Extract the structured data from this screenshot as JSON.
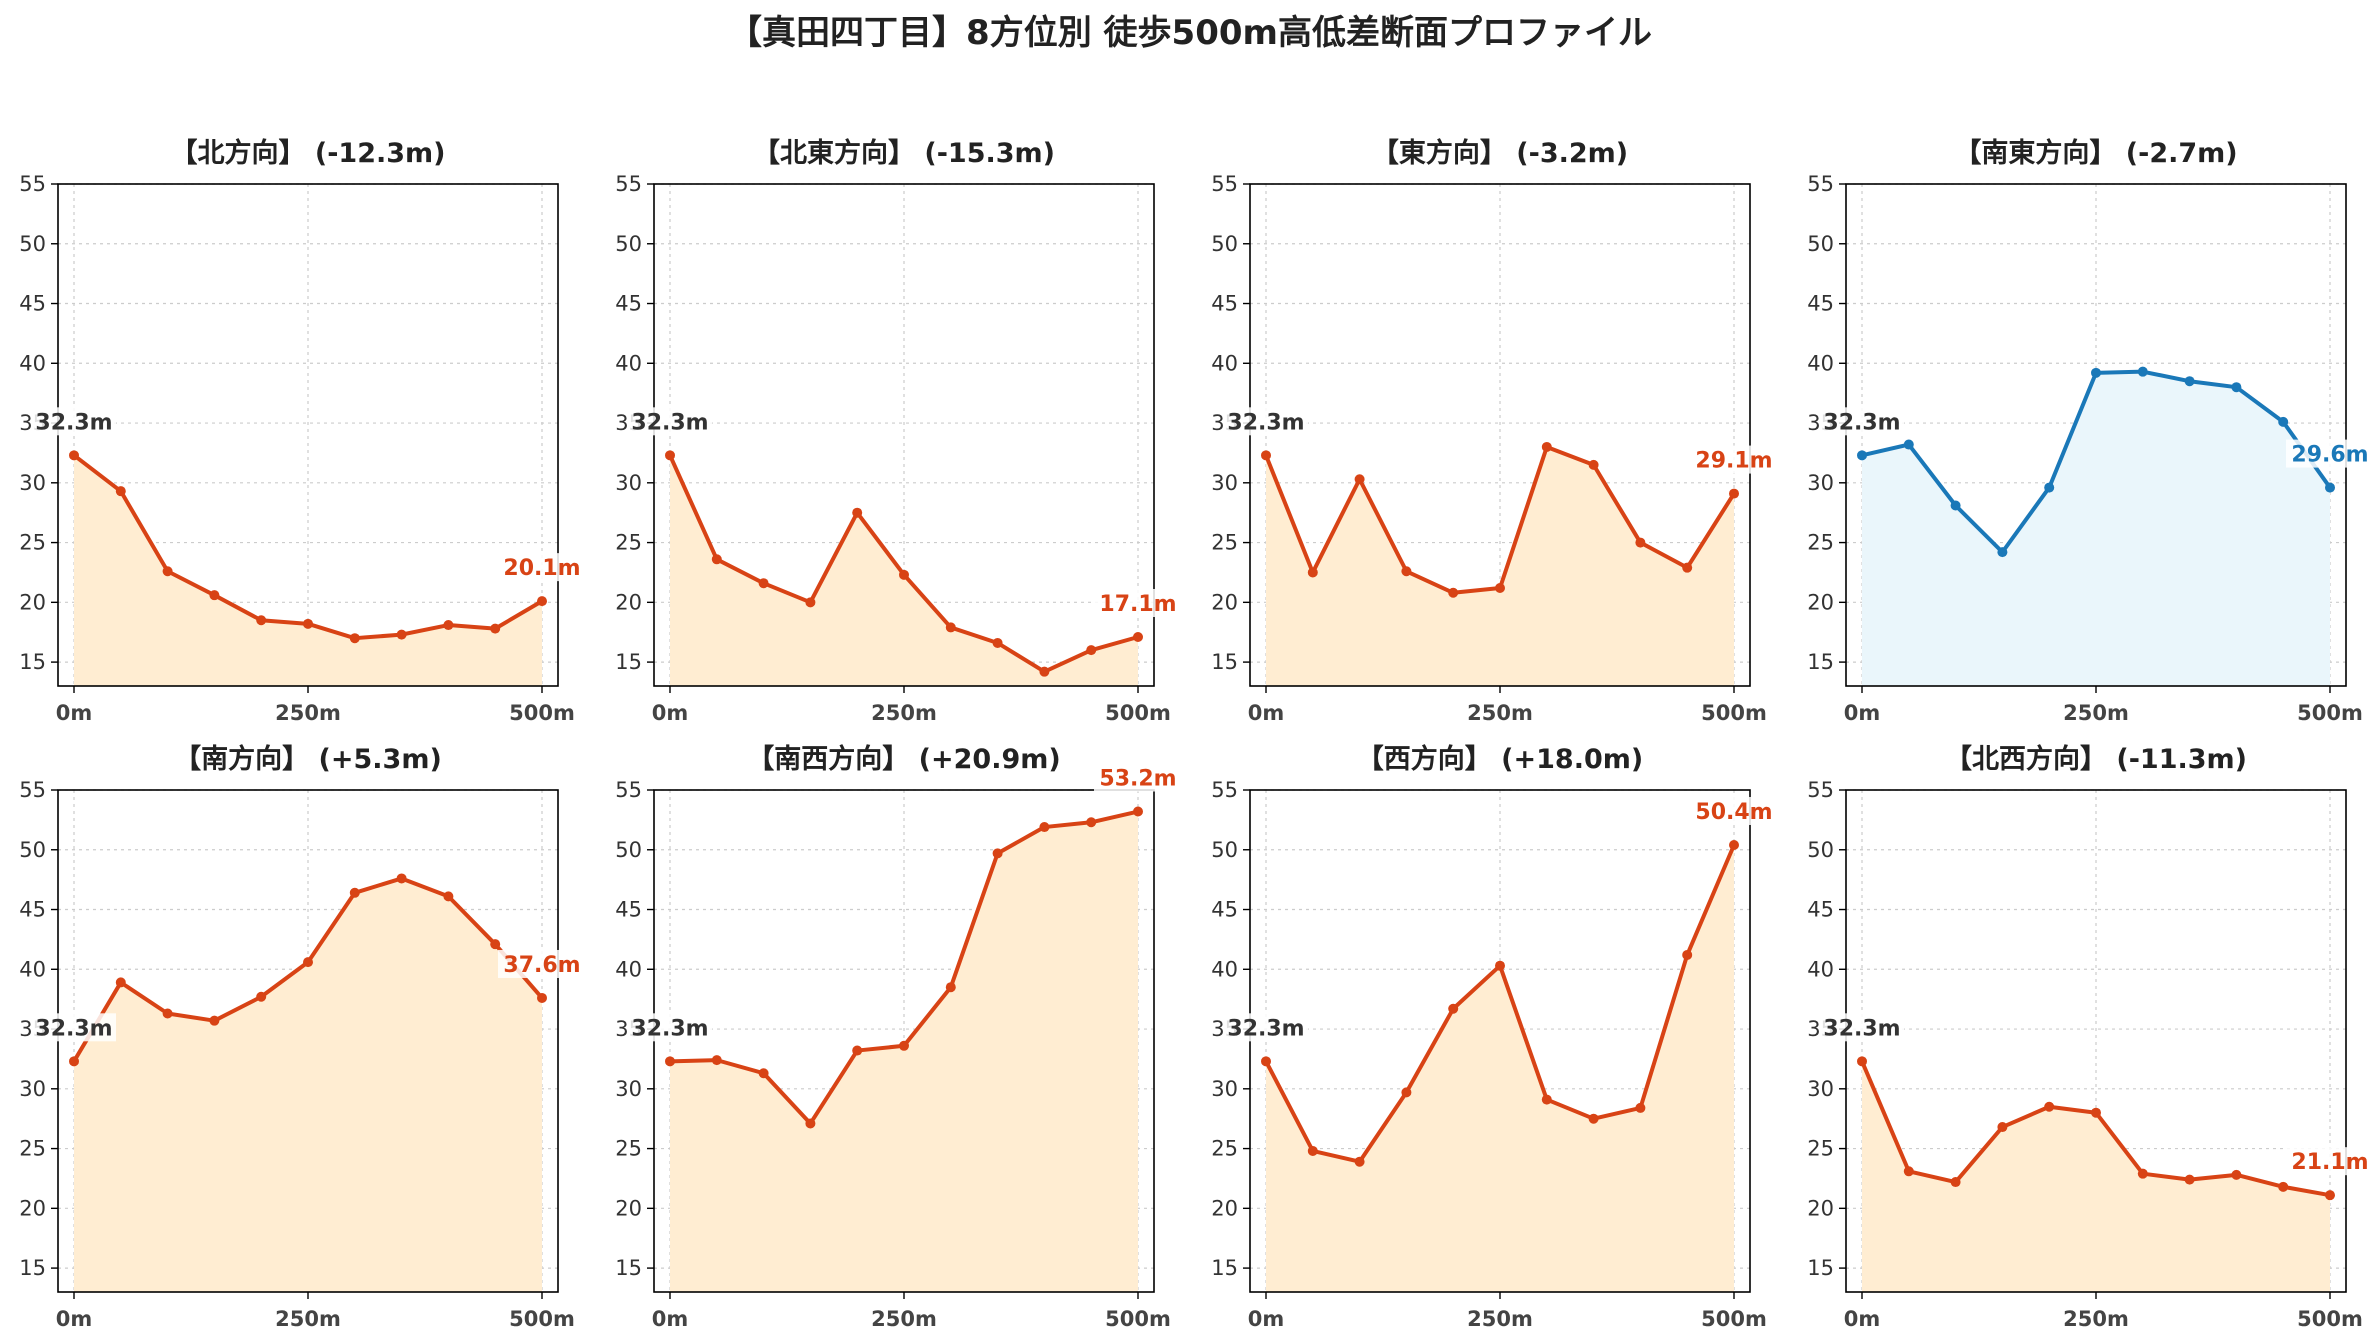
{
  "title": "【真田四丁目】8方位別 徒歩500m高低差断面プロファイル",
  "colors": {
    "down_line": "#c62828",
    "down_line_alt": "#d84315",
    "down_fill": "#ffedd2",
    "up_line": "#1a78b8",
    "up_fill": "#eaf6fb",
    "start_label": "#333333"
  },
  "chart_data": [
    {
      "type": "area",
      "title": "【北方向】 (-12.3m)",
      "x": [
        0,
        50,
        100,
        150,
        200,
        250,
        300,
        350,
        400,
        450,
        500
      ],
      "values": [
        32.3,
        29.3,
        22.6,
        20.6,
        18.5,
        18.2,
        17.0,
        17.3,
        18.1,
        17.8,
        20.1
      ],
      "ylim": [
        13,
        55
      ],
      "yticks": [
        "15",
        "20",
        "25",
        "30",
        "35",
        "40",
        "45",
        "50",
        "55"
      ],
      "xticks": [
        "0m",
        "250m",
        "500m"
      ],
      "start_label": "32.3m",
      "end_label": "20.1m",
      "style": "down"
    },
    {
      "type": "area",
      "title": "【北東方向】 (-15.3m)",
      "x": [
        0,
        50,
        100,
        150,
        200,
        250,
        300,
        350,
        400,
        450,
        500
      ],
      "values": [
        32.3,
        23.6,
        21.6,
        20.0,
        27.5,
        22.3,
        17.9,
        16.6,
        14.2,
        16.0,
        17.1
      ],
      "ylim": [
        13,
        55
      ],
      "yticks": [
        "15",
        "20",
        "25",
        "30",
        "35",
        "40",
        "45",
        "50",
        "55"
      ],
      "xticks": [
        "0m",
        "250m",
        "500m"
      ],
      "start_label": "32.3m",
      "end_label": "17.1m",
      "style": "down"
    },
    {
      "type": "area",
      "title": "【東方向】 (-3.2m)",
      "x": [
        0,
        50,
        100,
        150,
        200,
        250,
        300,
        350,
        400,
        450,
        500
      ],
      "values": [
        32.3,
        22.5,
        30.3,
        22.6,
        20.8,
        21.2,
        33.0,
        31.5,
        25.0,
        22.9,
        29.1
      ],
      "ylim": [
        13,
        55
      ],
      "yticks": [
        "15",
        "20",
        "25",
        "30",
        "35",
        "40",
        "45",
        "50",
        "55"
      ],
      "xticks": [
        "0m",
        "250m",
        "500m"
      ],
      "start_label": "32.3m",
      "end_label": "29.1m",
      "style": "down"
    },
    {
      "type": "area",
      "title": "【南東方向】 (-2.7m)",
      "x": [
        0,
        50,
        100,
        150,
        200,
        250,
        300,
        350,
        400,
        450,
        500
      ],
      "values": [
        32.3,
        33.2,
        28.1,
        24.2,
        29.6,
        39.2,
        39.3,
        38.5,
        38.0,
        35.1,
        29.6
      ],
      "ylim": [
        13,
        55
      ],
      "yticks": [
        "15",
        "20",
        "25",
        "30",
        "35",
        "40",
        "45",
        "50",
        "55"
      ],
      "xticks": [
        "0m",
        "250m",
        "500m"
      ],
      "start_label": "32.3m",
      "end_label": "29.6m",
      "style": "up"
    },
    {
      "type": "area",
      "title": "【南方向】 (+5.3m)",
      "x": [
        0,
        50,
        100,
        150,
        200,
        250,
        300,
        350,
        400,
        450,
        500
      ],
      "values": [
        32.3,
        38.9,
        36.3,
        35.7,
        37.7,
        40.6,
        46.4,
        47.6,
        46.1,
        42.1,
        37.6
      ],
      "ylim": [
        13,
        55
      ],
      "yticks": [
        "15",
        "20",
        "25",
        "30",
        "35",
        "40",
        "45",
        "50",
        "55"
      ],
      "xticks": [
        "0m",
        "250m",
        "500m"
      ],
      "start_label": "32.3m",
      "end_label": "37.6m",
      "style": "down"
    },
    {
      "type": "area",
      "title": "【南西方向】 (+20.9m)",
      "x": [
        0,
        50,
        100,
        150,
        200,
        250,
        300,
        350,
        400,
        450,
        500
      ],
      "values": [
        32.3,
        32.4,
        31.3,
        27.1,
        33.2,
        33.6,
        38.5,
        49.7,
        51.9,
        52.3,
        53.2
      ],
      "ylim": [
        13,
        55
      ],
      "yticks": [
        "15",
        "20",
        "25",
        "30",
        "35",
        "40",
        "45",
        "50",
        "55"
      ],
      "xticks": [
        "0m",
        "250m",
        "500m"
      ],
      "start_label": "32.3m",
      "end_label": "53.2m",
      "style": "down"
    },
    {
      "type": "area",
      "title": "【西方向】 (+18.0m)",
      "x": [
        0,
        50,
        100,
        150,
        200,
        250,
        300,
        350,
        400,
        450,
        500
      ],
      "values": [
        32.3,
        24.8,
        23.9,
        29.7,
        36.7,
        40.3,
        29.1,
        27.5,
        28.4,
        41.2,
        50.4
      ],
      "ylim": [
        13,
        55
      ],
      "yticks": [
        "15",
        "20",
        "25",
        "30",
        "35",
        "40",
        "45",
        "50",
        "55"
      ],
      "xticks": [
        "0m",
        "250m",
        "500m"
      ],
      "start_label": "32.3m",
      "end_label": "50.4m",
      "style": "down"
    },
    {
      "type": "area",
      "title": "【北西方向】 (-11.3m)",
      "x": [
        0,
        50,
        100,
        150,
        200,
        250,
        300,
        350,
        400,
        450,
        500
      ],
      "values": [
        32.3,
        23.1,
        22.2,
        26.8,
        28.5,
        28.0,
        22.9,
        22.4,
        22.8,
        21.8,
        21.1
      ],
      "ylim": [
        13,
        55
      ],
      "yticks": [
        "15",
        "20",
        "25",
        "30",
        "35",
        "40",
        "45",
        "50",
        "55"
      ],
      "xticks": [
        "0m",
        "250m",
        "500m"
      ],
      "start_label": "32.3m",
      "end_label": "21.1m",
      "style": "down"
    }
  ]
}
